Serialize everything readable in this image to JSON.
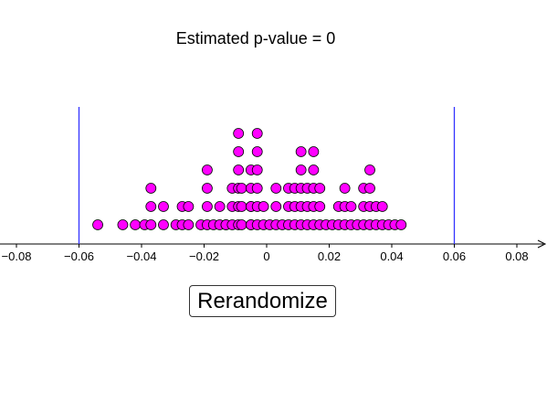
{
  "pvalue_text": "Estimated p-value = 0",
  "button_label": "Rerandomize",
  "colors": {
    "dot_fill": "#ff00ff",
    "dot_stroke": "#000000",
    "cutoff_line": "#3333ff",
    "axis": "#000000"
  },
  "chart_data": {
    "type": "scatter",
    "xlim": [
      -0.088,
      0.088
    ],
    "x_ticks": [
      "−0.08",
      "−0.06",
      "−0.04",
      "−0.02",
      "0",
      "0.02",
      "0.04",
      "0.06",
      "0.08"
    ],
    "x_tick_values": [
      -0.08,
      -0.06,
      -0.04,
      -0.02,
      0,
      0.02,
      0.04,
      0.06,
      0.08
    ],
    "cutoffs": [
      -0.06,
      0.06
    ],
    "dot_stacks": [
      {
        "x": -0.054,
        "count": 1
      },
      {
        "x": -0.046,
        "count": 1
      },
      {
        "x": -0.042,
        "count": 1
      },
      {
        "x": -0.039,
        "count": 1
      },
      {
        "x": -0.037,
        "count": 3
      },
      {
        "x": -0.033,
        "count": 2
      },
      {
        "x": -0.029,
        "count": 1
      },
      {
        "x": -0.027,
        "count": 2
      },
      {
        "x": -0.025,
        "count": 2
      },
      {
        "x": -0.021,
        "count": 1
      },
      {
        "x": -0.019,
        "count": 4
      },
      {
        "x": -0.017,
        "count": 1
      },
      {
        "x": -0.015,
        "count": 2
      },
      {
        "x": -0.013,
        "count": 1
      },
      {
        "x": -0.013,
        "count": 1
      },
      {
        "x": -0.011,
        "count": 3
      },
      {
        "x": -0.009,
        "count": 6
      },
      {
        "x": -0.008,
        "count": 3
      },
      {
        "x": -0.005,
        "count": 4
      },
      {
        "x": -0.005,
        "count": 2
      },
      {
        "x": -0.003,
        "count": 6
      },
      {
        "x": -0.001,
        "count": 2
      },
      {
        "x": 0.001,
        "count": 1
      },
      {
        "x": 0.003,
        "count": 3
      },
      {
        "x": 0.005,
        "count": 1
      },
      {
        "x": 0.007,
        "count": 3
      },
      {
        "x": 0.009,
        "count": 3
      },
      {
        "x": 0.011,
        "count": 5
      },
      {
        "x": 0.013,
        "count": 3
      },
      {
        "x": 0.015,
        "count": 5
      },
      {
        "x": 0.017,
        "count": 3
      },
      {
        "x": 0.019,
        "count": 1
      },
      {
        "x": 0.021,
        "count": 1
      },
      {
        "x": 0.023,
        "count": 2
      },
      {
        "x": 0.025,
        "count": 3
      },
      {
        "x": 0.027,
        "count": 2
      },
      {
        "x": 0.029,
        "count": 1
      },
      {
        "x": 0.031,
        "count": 3
      },
      {
        "x": 0.033,
        "count": 4
      },
      {
        "x": 0.035,
        "count": 2
      },
      {
        "x": 0.037,
        "count": 2
      },
      {
        "x": 0.039,
        "count": 1
      },
      {
        "x": 0.041,
        "count": 1
      },
      {
        "x": 0.043,
        "count": 1
      }
    ]
  }
}
